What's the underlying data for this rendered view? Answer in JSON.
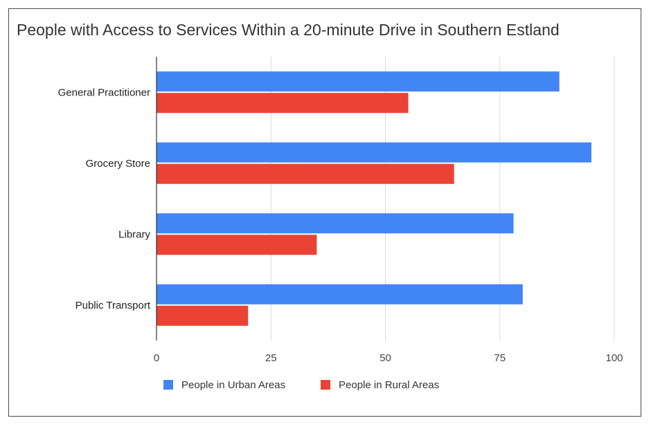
{
  "chart_data": {
    "type": "bar",
    "orientation": "horizontal",
    "title": "People with Access to Services Within a 20-minute Drive in Southern Estland",
    "categories": [
      "General Practitioner",
      "Grocery Store",
      "Library",
      "Public Transport"
    ],
    "series": [
      {
        "name": "People in Urban Areas",
        "color": "#4285f4",
        "values": [
          88,
          95,
          78,
          80
        ]
      },
      {
        "name": "People in Rural Areas",
        "color": "#ea4335",
        "values": [
          55,
          65,
          35,
          20
        ]
      }
    ],
    "xlim": [
      0,
      100
    ],
    "xticks": [
      0,
      25,
      50,
      75,
      100
    ],
    "xlabel": "",
    "ylabel": "",
    "grid": true,
    "legend_position": "bottom"
  }
}
